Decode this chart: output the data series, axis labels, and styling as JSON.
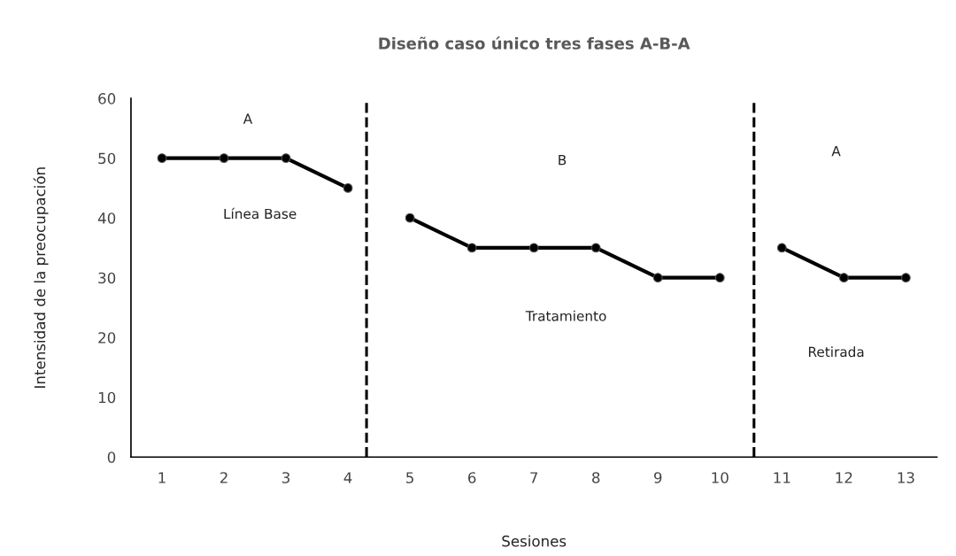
{
  "chart_data": {
    "type": "line",
    "title": "Diseño caso único tres fases A-B-A",
    "xlabel": "Sesiones",
    "ylabel": "Intensidad de la preocupación",
    "series": [
      {
        "color": "#000000",
        "x": [
          1,
          2,
          3,
          4
        ],
        "values": [
          50,
          50,
          50,
          45
        ]
      },
      {
        "color": "#000000",
        "x": [
          5,
          6,
          7,
          8,
          9,
          10
        ],
        "values": [
          40,
          35,
          35,
          35,
          30,
          30
        ]
      },
      {
        "color": "#000000",
        "x": [
          11,
          12,
          13
        ],
        "values": [
          35,
          30,
          30
        ]
      }
    ],
    "xlim": [
      0.5,
      13.5
    ],
    "xticks": [
      1,
      2,
      3,
      4,
      5,
      6,
      7,
      8,
      9,
      10,
      11,
      12,
      13
    ],
    "ylim": [
      0,
      60
    ],
    "yticks": [
      0,
      10,
      20,
      30,
      40,
      50,
      60
    ],
    "ref_lines": [
      {
        "axis": "x",
        "value": 4.3,
        "color": "#000000",
        "line_style": "dashed"
      },
      {
        "axis": "x",
        "value": 10.55,
        "color": "#000000",
        "line_style": "dashed"
      }
    ],
    "annotations": [
      "A",
      "Línea Base",
      "B",
      "Tratamiento",
      "A",
      "Retirada"
    ],
    "marker": "circle",
    "line_style": "solid",
    "grid": false,
    "legend": false
  }
}
